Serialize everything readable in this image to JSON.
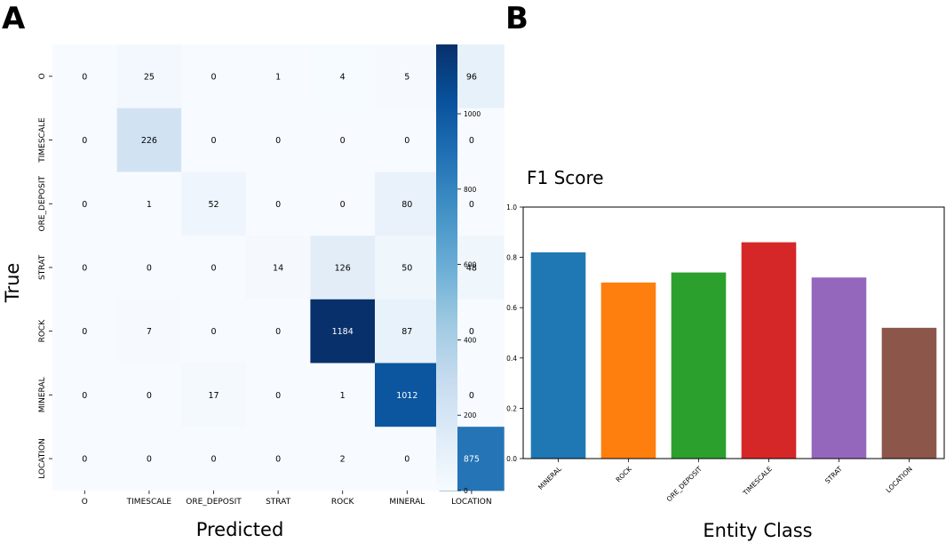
{
  "chart_data": [
    {
      "panel": "A",
      "type": "heatmap",
      "title": "",
      "xlabel": "Predicted",
      "ylabel": "True",
      "x_categories": [
        "O",
        "TIMESCALE",
        "ORE_DEPOSIT",
        "STRAT",
        "ROCK",
        "MINERAL",
        "LOCATION"
      ],
      "y_categories": [
        "O",
        "TIMESCALE",
        "ORE_DEPOSIT",
        "STRAT",
        "ROCK",
        "MINERAL",
        "LOCATION"
      ],
      "matrix": [
        [
          0,
          25,
          0,
          1,
          4,
          5,
          96
        ],
        [
          0,
          226,
          0,
          0,
          0,
          0,
          0
        ],
        [
          0,
          1,
          52,
          0,
          0,
          80,
          0
        ],
        [
          0,
          0,
          0,
          14,
          126,
          50,
          48
        ],
        [
          0,
          7,
          0,
          0,
          1184,
          87,
          0
        ],
        [
          0,
          0,
          17,
          0,
          1,
          1012,
          0
        ],
        [
          0,
          0,
          0,
          0,
          2,
          0,
          875
        ]
      ],
      "colorbar": {
        "min": 0,
        "max": 1184,
        "ticks": [
          0,
          200,
          400,
          600,
          800,
          1000
        ]
      },
      "colormap": [
        "#f7fbff",
        "#deebf7",
        "#c6dbef",
        "#9ecae1",
        "#6baed6",
        "#4292c6",
        "#2171b5",
        "#08519c",
        "#08306b"
      ]
    },
    {
      "panel": "B",
      "type": "bar",
      "title": "F1 Score",
      "xlabel": "Entity Class",
      "ylabel": "",
      "categories": [
        "MINERAL",
        "ROCK",
        "ORE_DEPOSIT",
        "TIMESCALE",
        "STRAT",
        "LOCATION"
      ],
      "values": [
        0.82,
        0.7,
        0.74,
        0.86,
        0.72,
        0.52
      ],
      "colors": [
        "#1f77b4",
        "#ff7f0e",
        "#2ca02c",
        "#d62728",
        "#9467bd",
        "#8c564b"
      ],
      "ylim": [
        0,
        1.0
      ],
      "yticks": [
        0.0,
        0.2,
        0.4,
        0.6,
        0.8,
        1.0
      ]
    }
  ]
}
